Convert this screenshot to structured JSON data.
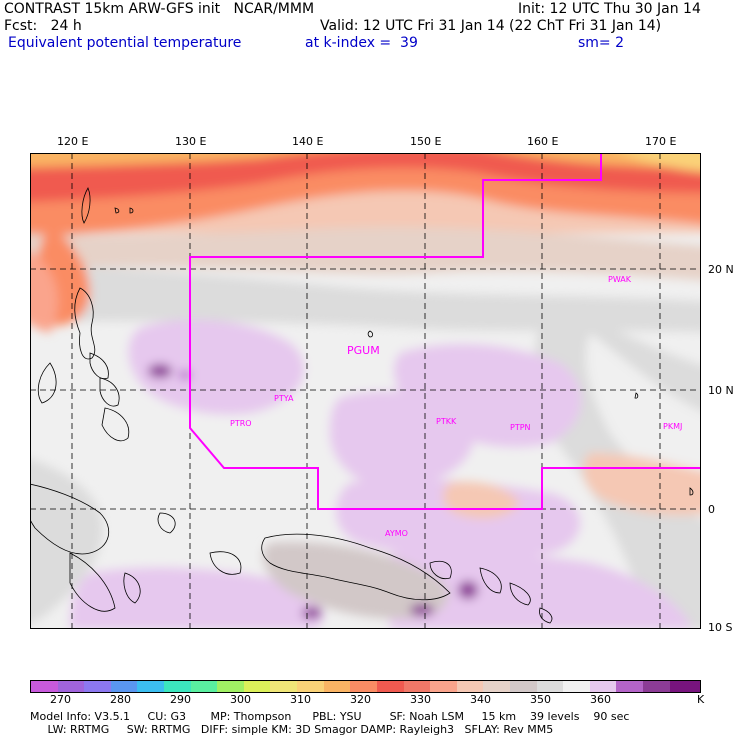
{
  "header": {
    "line1_left": "CONTRAST 15km ARW-GFS init   NCAR/MMM",
    "line1_right": "Init: 12 UTC Thu 30 Jan 14",
    "line2_left": "Fcst:   24 h",
    "line2_right": "Valid: 12 UTC Fri 31 Jan 14 (22 ChT Fri 31 Jan 14)",
    "line3_left": "Equivalent potential temperature",
    "line3_mid": "at k-index =  39",
    "line3_right": "sm= 2"
  },
  "axes": {
    "lon_labels": [
      "120 E",
      "130 E",
      "140 E",
      "150 E",
      "160 E",
      "170 E"
    ],
    "lat_labels": [
      "20 N",
      "10 N",
      "0",
      "10 S"
    ]
  },
  "stations": [
    {
      "id": "PWAK",
      "label": "PWAK"
    },
    {
      "id": "PGUM",
      "label": "PGUM"
    },
    {
      "id": "PTYA",
      "label": "PTYA"
    },
    {
      "id": "PTRO",
      "label": "PTRO"
    },
    {
      "id": "PTKK",
      "label": "PTKK"
    },
    {
      "id": "PTPN",
      "label": "PTPN"
    },
    {
      "id": "PKMJ",
      "label": "PKMJ"
    },
    {
      "id": "AYMO",
      "label": "AYMO"
    }
  ],
  "colorbar": {
    "colors": [
      "#c85adc",
      "#a064dc",
      "#8c78f0",
      "#5a96f0",
      "#3cbef0",
      "#3ce6be",
      "#5aefa0",
      "#a0f064",
      "#dcf05a",
      "#f0e678",
      "#fad278",
      "#fab464",
      "#fa8c64",
      "#f05a50",
      "#f07868",
      "#faa48c",
      "#f5c8b4",
      "#e6d2c8",
      "#d2c8c8",
      "#dcdcdc",
      "#f0f0f0",
      "#e6c8ee",
      "#b464c8",
      "#8c3c96",
      "#78147e"
    ],
    "tick_labels": [
      "270",
      "280",
      "290",
      "300",
      "310",
      "320",
      "330",
      "340",
      "350",
      "360",
      "K"
    ],
    "unit": "K"
  },
  "footer": {
    "line1": "Model Info: V3.5.1     CU: G3       MP: Thompson      PBL: YSU        SF: Noah LSM     15 km    39 levels    90 sec",
    "line2": "     LW: RRTMG     SW: RRTMG   DIFF: simple KM: 3D Smagor DAMP: Rayleigh3   SFLAY: Rev MM5"
  }
}
